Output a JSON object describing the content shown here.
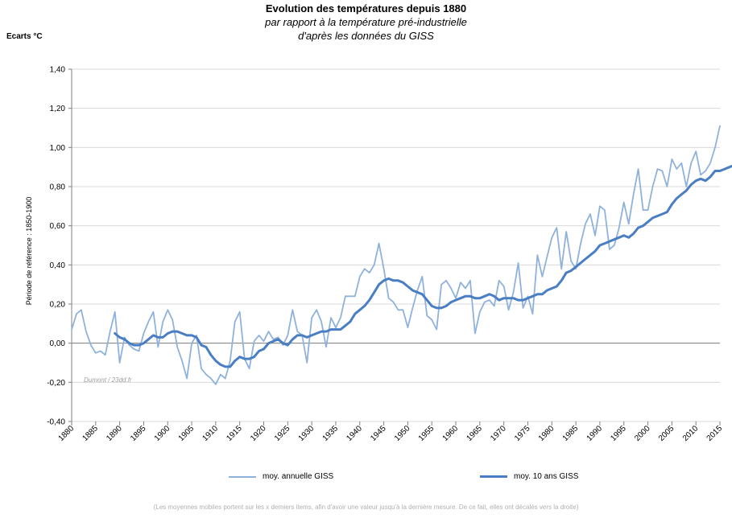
{
  "chart_data": {
    "type": "line",
    "title": "Evolution des températures depuis 1880",
    "subtitle": "par rapport à la température pré-industrielle",
    "subtitle2": "d'après les données du GISS",
    "unit_label": "Ecarts °C",
    "ylabel": "Période de référence : 1850-1900",
    "credit": "Dumont / 23dd.fr",
    "footnote": "(Les moyennes mobiles portent sur les x derniers items,  afin  d'avoir une valeur  jusqu'à la dernière mesure. De ce fait, elles ont décalés vers la droite)",
    "xlim": [
      1880,
      2015
    ],
    "ylim": [
      -0.4,
      1.4
    ],
    "x_ticks": [
      "1880",
      "1885",
      "1890",
      "1895",
      "1900",
      "1905",
      "1910",
      "1915",
      "1920",
      "1925",
      "1930",
      "1935",
      "1940",
      "1945",
      "1950",
      "1955",
      "1960",
      "1965",
      "1970",
      "1975",
      "1980",
      "1985",
      "1990",
      "1995",
      "2000",
      "2005",
      "2010",
      "2015"
    ],
    "y_ticks": [
      "-0,40",
      "-0,20",
      "0,00",
      "0,20",
      "0,40",
      "0,60",
      "0,80",
      "1,00",
      "1,20",
      "1,40"
    ],
    "grid": "horizontal",
    "legend_position": "bottom",
    "series": [
      {
        "name": "moy. annuelle GISS",
        "color": "#8fb2dc",
        "x_start": 1880,
        "values": [
          0.07,
          0.15,
          0.17,
          0.06,
          -0.01,
          -0.05,
          -0.04,
          -0.06,
          0.06,
          0.16,
          -0.1,
          0.03,
          -0.01,
          -0.03,
          -0.04,
          0.05,
          0.11,
          0.16,
          -0.02,
          0.11,
          0.17,
          0.12,
          -0.02,
          -0.09,
          -0.18,
          0.0,
          0.04,
          -0.13,
          -0.16,
          -0.18,
          -0.21,
          -0.16,
          -0.18,
          -0.09,
          0.11,
          0.16,
          -0.08,
          -0.13,
          0.01,
          0.04,
          0.01,
          0.06,
          0.02,
          0.03,
          -0.01,
          0.04,
          0.17,
          0.06,
          0.04,
          -0.1,
          0.13,
          0.17,
          0.11,
          -0.02,
          0.13,
          0.08,
          0.13,
          0.24,
          0.24,
          0.24,
          0.34,
          0.38,
          0.36,
          0.4,
          0.51,
          0.38,
          0.23,
          0.21,
          0.17,
          0.17,
          0.08,
          0.18,
          0.27,
          0.34,
          0.14,
          0.12,
          0.07,
          0.3,
          0.32,
          0.28,
          0.23,
          0.31,
          0.28,
          0.32,
          0.05,
          0.16,
          0.21,
          0.22,
          0.19,
          0.32,
          0.29,
          0.17,
          0.26,
          0.41,
          0.18,
          0.24,
          0.15,
          0.45,
          0.34,
          0.44,
          0.54,
          0.59,
          0.38,
          0.57,
          0.42,
          0.38,
          0.51,
          0.61,
          0.66,
          0.55,
          0.7,
          0.68,
          0.48,
          0.5,
          0.59,
          0.72,
          0.61,
          0.76,
          0.89,
          0.68,
          0.68,
          0.8,
          0.89,
          0.88,
          0.8,
          0.94,
          0.89,
          0.92,
          0.8,
          0.92,
          0.98,
          0.86,
          0.88,
          0.92,
          1.0,
          1.11
        ]
      },
      {
        "name": "moy. 10 ans GISS",
        "color": "#4a7ec4",
        "x_start": 1889,
        "values": [
          0.05,
          0.03,
          0.02,
          0.0,
          -0.01,
          -0.01,
          0.0,
          0.02,
          0.04,
          0.03,
          0.03,
          0.05,
          0.06,
          0.06,
          0.05,
          0.04,
          0.04,
          0.03,
          -0.01,
          -0.02,
          -0.06,
          -0.09,
          -0.11,
          -0.12,
          -0.12,
          -0.09,
          -0.07,
          -0.08,
          -0.08,
          -0.07,
          -0.04,
          -0.03,
          0.0,
          0.01,
          0.02,
          0.0,
          -0.01,
          0.02,
          0.04,
          0.04,
          0.03,
          0.04,
          0.05,
          0.06,
          0.06,
          0.07,
          0.07,
          0.07,
          0.09,
          0.11,
          0.15,
          0.17,
          0.19,
          0.22,
          0.26,
          0.3,
          0.32,
          0.33,
          0.32,
          0.32,
          0.31,
          0.29,
          0.27,
          0.26,
          0.25,
          0.22,
          0.19,
          0.18,
          0.18,
          0.19,
          0.21,
          0.22,
          0.23,
          0.24,
          0.24,
          0.23,
          0.23,
          0.24,
          0.25,
          0.24,
          0.22,
          0.23,
          0.23,
          0.23,
          0.22,
          0.22,
          0.23,
          0.24,
          0.25,
          0.25,
          0.27,
          0.28,
          0.29,
          0.32,
          0.36,
          0.37,
          0.39,
          0.41,
          0.43,
          0.45,
          0.47,
          0.5,
          0.51,
          0.52,
          0.53,
          0.54,
          0.55,
          0.54,
          0.56,
          0.59,
          0.6,
          0.62,
          0.64,
          0.65,
          0.66,
          0.67,
          0.71,
          0.74,
          0.76,
          0.78,
          0.81,
          0.83,
          0.84,
          0.83,
          0.85,
          0.88,
          0.88,
          0.89,
          0.9,
          0.91,
          0.92
        ]
      }
    ]
  }
}
